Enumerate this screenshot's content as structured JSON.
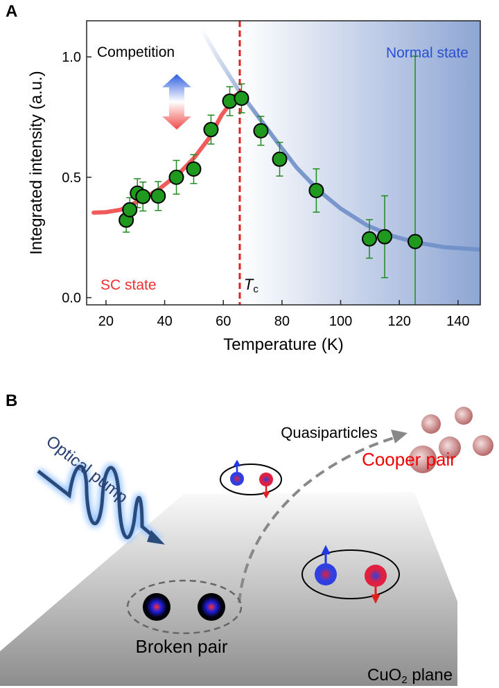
{
  "chart_data": {
    "type": "scatter",
    "panel_label": "A",
    "xlabel": "Temperature (K)",
    "ylabel": "Integrated intensity (a.u.)",
    "xlim": [
      13.4,
      147.6
    ],
    "ylim": [
      -0.03,
      1.15
    ],
    "xticks": [
      20,
      40,
      60,
      80,
      100,
      120,
      140
    ],
    "yticks": [
      {
        "value": 0,
        "label": "0.0"
      },
      0.5,
      {
        "value": 1,
        "label": "1.0"
      }
    ],
    "x": [
      26.9,
      28.1,
      30.7,
      32.6,
      37.8,
      44.0,
      49.9,
      55.8,
      62.2,
      66.2,
      72.8,
      79.2,
      91.7,
      109.8,
      115.0,
      125.4
    ],
    "values": [
      0.322,
      0.365,
      0.434,
      0.42,
      0.422,
      0.5,
      0.534,
      0.698,
      0.816,
      0.828,
      0.693,
      0.575,
      0.445,
      0.244,
      0.253,
      0.233
    ],
    "errors": [
      0.05,
      0.05,
      0.06,
      0.06,
      0.06,
      0.07,
      0.06,
      0.06,
      0.06,
      0.06,
      0.06,
      0.07,
      0.09,
      0.08,
      0.17,
      0.77
    ],
    "color": "#1f9a1f",
    "error_color": "#1f8a1f",
    "fits": [
      {
        "color": "#f04848",
        "x": [
          15.8,
          20,
          25,
          31,
          38,
          45,
          50,
          55,
          59.5,
          62,
          64
        ],
        "values": [
          0.353,
          0.355,
          0.365,
          0.4,
          0.45,
          0.517,
          0.58,
          0.66,
          0.76,
          0.8,
          0.84
        ]
      },
      {
        "color": "#6f8fc8",
        "x": [
          52.3,
          58,
          65.3,
          72,
          78.3,
          85,
          92.5,
          100,
          109,
          118,
          125.5,
          135,
          147
        ],
        "values": [
          1.12,
          1.0,
          0.86,
          0.75,
          0.647,
          0.54,
          0.445,
          0.37,
          0.3,
          0.255,
          0.23,
          0.21,
          0.2
        ]
      }
    ],
    "tc_line": 65.6,
    "tc_symbol": "T",
    "tc_subscript": "c",
    "annotations": {
      "competition": "Competition",
      "normal": "Normal state",
      "sc": "SC state"
    }
  },
  "diagram": {
    "panel_label": "B",
    "optical_pump": "Optical pump",
    "quasiparticles": "Quasiparticles",
    "cooper_pair": "Cooper pair",
    "broken_pair": "Broken pair",
    "plane": "CuO",
    "plane_sub": "2",
    "plane_rest": " plane"
  }
}
